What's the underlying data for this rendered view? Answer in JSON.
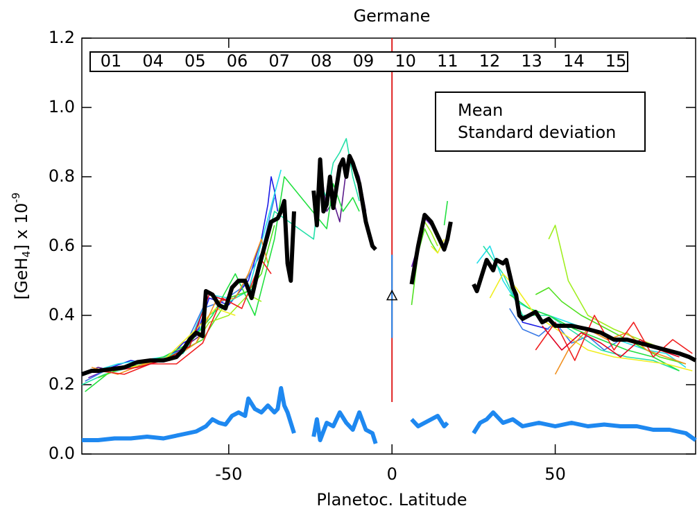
{
  "chart_data": {
    "type": "line",
    "title": "Germane",
    "xlabel": "Planetoc. Latitude",
    "ylabel": [
      "[GeH",
      "4",
      "] x 10",
      "-9"
    ],
    "xlim": [
      -95,
      93
    ],
    "ylim": [
      0,
      1.2
    ],
    "xticks": [
      -50,
      0,
      50
    ],
    "yticks": [
      {
        "value": 0,
        "label": "0.0"
      },
      0.2,
      0.4,
      0.6,
      0.8,
      {
        "value": 1,
        "label": "1.0"
      },
      1.2
    ],
    "vline": {
      "x": 0,
      "from": 0.15,
      "color": "#e02020"
    },
    "marker": {
      "x": 0,
      "y": 0.455,
      "error": 0.12,
      "color": "#1e88f0"
    },
    "orbits": [
      {
        "name": "01",
        "color": "#5b1b8b",
        "x": [
          -95,
          -90,
          -85,
          -80,
          -75,
          -70,
          -65,
          -62,
          -59,
          -40,
          -22,
          -20,
          -18,
          -16,
          -14,
          -12,
          -10,
          -8
        ],
        "values": [
          0.23,
          0.25,
          0.24,
          0.26,
          0.27,
          0.28,
          0.3,
          0.32,
          0.34,
          null,
          0.84,
          0.7,
          0.73,
          0.67,
          0.82,
          0.85,
          0.8,
          0.7
        ]
      },
      {
        "name": "04",
        "color": "#7020c0",
        "x": [
          -93,
          -88,
          -83,
          -78,
          -73,
          -68,
          -63,
          -60,
          -57,
          -30,
          6,
          8,
          10,
          12,
          14,
          16
        ],
        "values": [
          0.22,
          0.24,
          0.25,
          0.26,
          0.27,
          0.28,
          0.31,
          0.35,
          0.45,
          null,
          0.54,
          0.6,
          0.68,
          0.66,
          0.62,
          0.6
        ]
      },
      {
        "name": "05",
        "color": "#1a1ae6",
        "x": [
          -92,
          -86,
          -80,
          -74,
          -68,
          -64,
          -60,
          -56,
          -50,
          -44,
          -40,
          -38,
          -37,
          -36,
          -35,
          0,
          36,
          40,
          44,
          48
        ],
        "values": [
          0.24,
          0.25,
          0.27,
          0.26,
          0.28,
          0.32,
          0.34,
          0.45,
          0.43,
          0.5,
          0.62,
          0.72,
          0.8,
          0.76,
          0.7,
          null,
          0.5,
          0.38,
          0.37,
          0.36
        ]
      },
      {
        "name": "06",
        "color": "#3a7ae6",
        "x": [
          -94,
          -88,
          -82,
          -76,
          -70,
          -64,
          -58,
          -52,
          -46,
          -40,
          -36,
          0,
          36,
          40,
          45,
          50,
          55,
          60,
          65,
          70
        ],
        "values": [
          0.21,
          0.24,
          0.25,
          0.27,
          0.28,
          0.3,
          0.42,
          0.44,
          0.48,
          0.58,
          0.74,
          null,
          0.42,
          0.36,
          0.34,
          0.38,
          0.32,
          0.34,
          0.3,
          0.33
        ]
      },
      {
        "name": "07",
        "color": "#22dde8",
        "x": [
          -91,
          -84,
          -77,
          -70,
          -63,
          -56,
          -50,
          -44,
          -38,
          -34,
          0,
          26,
          30,
          34,
          38,
          42,
          48,
          54,
          60,
          66,
          72,
          78,
          84,
          90
        ],
        "values": [
          0.24,
          0.26,
          0.27,
          0.28,
          0.3,
          0.46,
          0.45,
          0.47,
          0.68,
          0.82,
          null,
          0.55,
          0.6,
          0.5,
          0.44,
          0.42,
          0.4,
          0.38,
          0.36,
          0.34,
          0.32,
          0.3,
          0.29,
          0.25
        ]
      },
      {
        "name": "08",
        "color": "#22e0a8",
        "x": [
          -95,
          -88,
          -80,
          -72,
          -64,
          -56,
          -48,
          -42,
          -36,
          -24,
          -22,
          -20,
          -18,
          -16,
          -14,
          -12,
          -10,
          0,
          28,
          34,
          40,
          48,
          56,
          64,
          72,
          80,
          88
        ],
        "values": [
          0.2,
          0.23,
          0.25,
          0.27,
          0.29,
          0.4,
          0.45,
          0.48,
          0.7,
          0.62,
          0.78,
          0.74,
          0.84,
          0.87,
          0.91,
          0.8,
          0.73,
          null,
          0.6,
          0.52,
          0.4,
          0.4,
          0.35,
          0.3,
          0.28,
          0.27,
          0.24
        ]
      },
      {
        "name": "09",
        "color": "#22e040",
        "x": [
          -94,
          -86,
          -78,
          -70,
          -62,
          -55,
          -48,
          -42,
          -36,
          -33,
          -20,
          -18,
          -15,
          -12,
          -10,
          0,
          16,
          17,
          25,
          36,
          42,
          48,
          56,
          64,
          72,
          80,
          88
        ],
        "values": [
          0.18,
          0.24,
          0.26,
          0.28,
          0.32,
          0.4,
          0.52,
          0.4,
          0.62,
          0.8,
          0.65,
          0.78,
          0.7,
          0.74,
          0.7,
          null,
          0.66,
          0.73,
          null,
          0.46,
          0.42,
          0.4,
          0.36,
          0.33,
          0.3,
          0.28,
          0.24
        ]
      },
      {
        "name": "10",
        "color": "#50e020",
        "x": [
          -90,
          -82,
          -74,
          -66,
          -58,
          -50,
          -44,
          -40,
          -36,
          0,
          6,
          8,
          10,
          12,
          14,
          25,
          44,
          48,
          52,
          58,
          66,
          74,
          82,
          90
        ],
        "values": [
          0.22,
          0.25,
          0.26,
          0.29,
          0.33,
          0.45,
          0.47,
          0.52,
          0.66,
          null,
          0.43,
          0.58,
          0.65,
          0.61,
          0.58,
          null,
          0.46,
          0.48,
          0.44,
          0.4,
          0.36,
          0.32,
          0.28,
          0.26
        ]
      },
      {
        "name": "11",
        "color": "#a0ee20",
        "x": [
          -88,
          -78,
          -68,
          -60,
          -56,
          -50,
          -44,
          -40,
          0,
          8,
          10,
          12,
          14,
          25,
          48,
          50,
          54,
          60,
          68,
          76,
          84,
          92
        ],
        "values": [
          0.24,
          0.26,
          0.27,
          0.32,
          0.38,
          0.4,
          0.46,
          0.44,
          null,
          0.62,
          0.67,
          0.64,
          0.6,
          null,
          0.62,
          0.66,
          0.5,
          0.4,
          0.36,
          0.33,
          0.3,
          0.28
        ]
      },
      {
        "name": "12",
        "color": "#f0ee20",
        "x": [
          -80,
          -70,
          -60,
          -54,
          -48,
          0,
          12,
          14,
          16,
          25,
          30,
          34,
          38,
          44,
          52,
          60,
          68,
          76,
          84,
          92
        ],
        "values": [
          0.25,
          0.27,
          0.36,
          0.42,
          0.4,
          null,
          0.6,
          0.58,
          0.62,
          null,
          0.45,
          0.52,
          0.48,
          0.4,
          0.35,
          0.3,
          0.28,
          0.27,
          0.26,
          0.24
        ]
      },
      {
        "name": "13",
        "color": "#f09020",
        "x": [
          -92,
          -84,
          -76,
          -68,
          -60,
          -54,
          -48,
          -44,
          -40,
          -38,
          0,
          50,
          54,
          60,
          66,
          72,
          78,
          84,
          90
        ],
        "values": [
          0.25,
          0.23,
          0.26,
          0.27,
          0.32,
          0.44,
          0.45,
          0.52,
          0.62,
          0.55,
          null,
          0.23,
          0.3,
          0.36,
          0.33,
          0.35,
          0.3,
          0.28,
          0.26
        ]
      },
      {
        "name": "14",
        "color": "#f02020",
        "x": [
          -90,
          -82,
          -74,
          -66,
          -58,
          -52,
          -46,
          -40,
          -37,
          0,
          44,
          50,
          56,
          62,
          68,
          74,
          80,
          86,
          92
        ],
        "values": [
          0.24,
          0.23,
          0.26,
          0.26,
          0.32,
          0.45,
          0.42,
          0.56,
          0.52,
          null,
          0.3,
          0.38,
          0.27,
          0.4,
          0.3,
          0.38,
          0.28,
          0.33,
          0.29
        ]
      },
      {
        "name": "15",
        "color": "#e00020",
        "x": [
          -86,
          -78,
          -70,
          -62,
          -56,
          -50,
          0,
          46,
          52,
          58,
          64,
          70,
          76,
          82,
          88
        ],
        "values": [
          0.24,
          0.25,
          0.27,
          0.31,
          0.46,
          0.44,
          null,
          0.37,
          0.3,
          0.35,
          0.32,
          0.28,
          0.33,
          0.3,
          0.28
        ]
      }
    ],
    "series": [
      {
        "name": "Mean",
        "color": "#000000",
        "x": [
          -95,
          -92,
          -90,
          -86,
          -82,
          -78,
          -74,
          -70,
          -66,
          -64,
          -62,
          -60,
          -58,
          -57,
          -55,
          -53,
          -51,
          -49,
          -47,
          -45,
          -43,
          -41,
          -39,
          -37,
          -35,
          -34,
          -33,
          -32,
          -31,
          -30,
          -27,
          -24,
          -23,
          -22,
          -21,
          -20,
          -19,
          -18,
          -16,
          -15,
          -14,
          -13,
          -12,
          -10,
          -8,
          -6,
          -5,
          0,
          6,
          8,
          10,
          12,
          14,
          16,
          17,
          18,
          22,
          25,
          26,
          28,
          29,
          31,
          32,
          34,
          35,
          37,
          38,
          39,
          40,
          42,
          44,
          46,
          48,
          50,
          55,
          60,
          64,
          68,
          72,
          76,
          80,
          84,
          88,
          91,
          93
        ],
        "values": [
          0.23,
          0.24,
          0.24,
          0.245,
          0.25,
          0.265,
          0.27,
          0.27,
          0.28,
          0.3,
          0.33,
          0.35,
          0.34,
          0.47,
          0.46,
          0.43,
          0.42,
          0.48,
          0.5,
          0.5,
          0.45,
          0.53,
          0.6,
          0.67,
          0.68,
          0.7,
          0.73,
          0.55,
          0.5,
          0.7,
          null,
          0.76,
          0.66,
          0.85,
          0.7,
          0.72,
          0.8,
          0.71,
          0.83,
          0.85,
          0.8,
          0.86,
          0.84,
          0.78,
          0.67,
          0.6,
          0.59,
          null,
          0.49,
          0.6,
          0.69,
          0.67,
          0.63,
          0.59,
          0.62,
          0.67,
          null,
          0.49,
          0.47,
          0.53,
          0.56,
          0.53,
          0.56,
          0.55,
          0.56,
          0.48,
          0.46,
          0.4,
          0.39,
          0.4,
          0.41,
          0.38,
          0.39,
          0.37,
          0.37,
          0.36,
          0.35,
          0.33,
          0.33,
          0.32,
          0.31,
          0.3,
          0.29,
          0.28,
          0.27
        ]
      },
      {
        "name": "Standard deviation",
        "color": "#1e88f0",
        "x": [
          -95,
          -90,
          -85,
          -80,
          -75,
          -70,
          -65,
          -60,
          -57,
          -55,
          -53,
          -51,
          -49,
          -47,
          -45,
          -44,
          -42,
          -40,
          -38,
          -36,
          -35,
          -34,
          -33,
          -32,
          -30,
          -27,
          -24,
          -23,
          -22,
          -20,
          -18,
          -16,
          -14,
          -12,
          -10,
          -8,
          -6,
          -5,
          0,
          6,
          8,
          10,
          12,
          14,
          16,
          17,
          22,
          25,
          27,
          29,
          31,
          34,
          37,
          40,
          45,
          50,
          55,
          60,
          65,
          70,
          75,
          80,
          85,
          90,
          93
        ],
        "values": [
          0.04,
          0.04,
          0.045,
          0.045,
          0.05,
          0.045,
          0.055,
          0.065,
          0.08,
          0.1,
          0.09,
          0.085,
          0.11,
          0.12,
          0.11,
          0.16,
          0.13,
          0.12,
          0.14,
          0.12,
          0.13,
          0.19,
          0.14,
          0.12,
          0.06,
          null,
          0.05,
          0.1,
          0.04,
          0.09,
          0.08,
          0.12,
          0.09,
          0.07,
          0.12,
          0.07,
          0.06,
          0.03,
          null,
          0.1,
          0.08,
          0.09,
          0.1,
          0.11,
          0.08,
          0.09,
          null,
          0.06,
          0.09,
          0.1,
          0.12,
          0.09,
          0.1,
          0.08,
          0.09,
          0.08,
          0.09,
          0.08,
          0.085,
          0.08,
          0.08,
          0.07,
          0.07,
          0.06,
          0.04
        ]
      }
    ]
  }
}
